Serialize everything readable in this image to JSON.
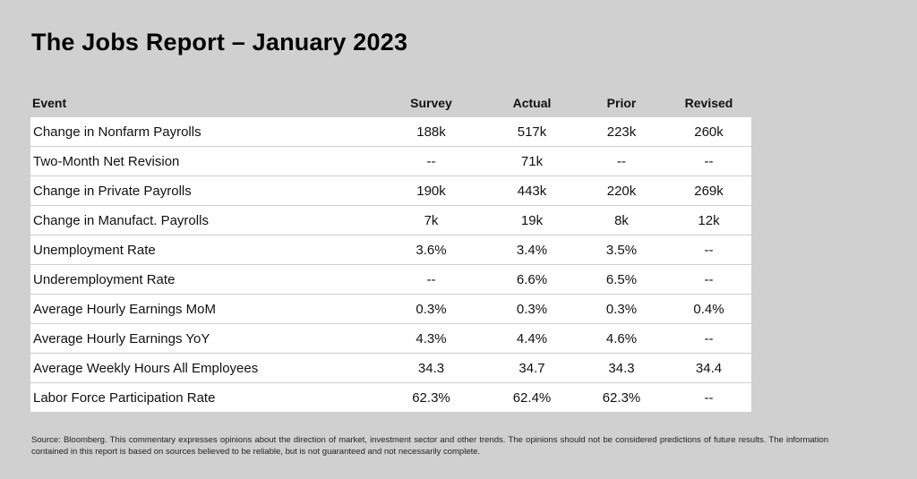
{
  "title": "The Jobs Report – January 2023",
  "table": {
    "headers": {
      "event": "Event",
      "survey": "Survey",
      "actual": "Actual",
      "prior": "Prior",
      "revised": "Revised"
    },
    "rows": [
      {
        "event": "Change in Nonfarm Payrolls",
        "survey": "188k",
        "actual": "517k",
        "prior": "223k",
        "revised": "260k"
      },
      {
        "event": "Two-Month Net Revision",
        "survey": "--",
        "actual": "71k",
        "prior": "--",
        "revised": "--"
      },
      {
        "event": "Change in Private Payrolls",
        "survey": "190k",
        "actual": "443k",
        "prior": "220k",
        "revised": "269k"
      },
      {
        "event": "Change in Manufact. Payrolls",
        "survey": "7k",
        "actual": "19k",
        "prior": "8k",
        "revised": "12k"
      },
      {
        "event": "Unemployment Rate",
        "survey": "3.6%",
        "actual": "3.4%",
        "prior": "3.5%",
        "revised": "--"
      },
      {
        "event": "Underemployment Rate",
        "survey": "--",
        "actual": "6.6%",
        "prior": "6.5%",
        "revised": "--"
      },
      {
        "event": "Average Hourly Earnings MoM",
        "survey": "0.3%",
        "actual": "0.3%",
        "prior": "0.3%",
        "revised": "0.4%"
      },
      {
        "event": "Average Hourly Earnings YoY",
        "survey": "4.3%",
        "actual": "4.4%",
        "prior": "4.6%",
        "revised": "--"
      },
      {
        "event": "Average Weekly Hours All Employees",
        "survey": "34.3",
        "actual": "34.7",
        "prior": "34.3",
        "revised": "34.4"
      },
      {
        "event": "Labor Force Participation Rate",
        "survey": "62.3%",
        "actual": "62.4%",
        "prior": "62.3%",
        "revised": "--"
      }
    ]
  },
  "footer": "Source: Bloomberg. This commentary expresses opinions about the direction of market, investment sector and other trends. The opinions should not be considered predictions of future results. The information contained in this report is based on sources believed to be reliable, but is not guaranteed and not necessarily complete."
}
